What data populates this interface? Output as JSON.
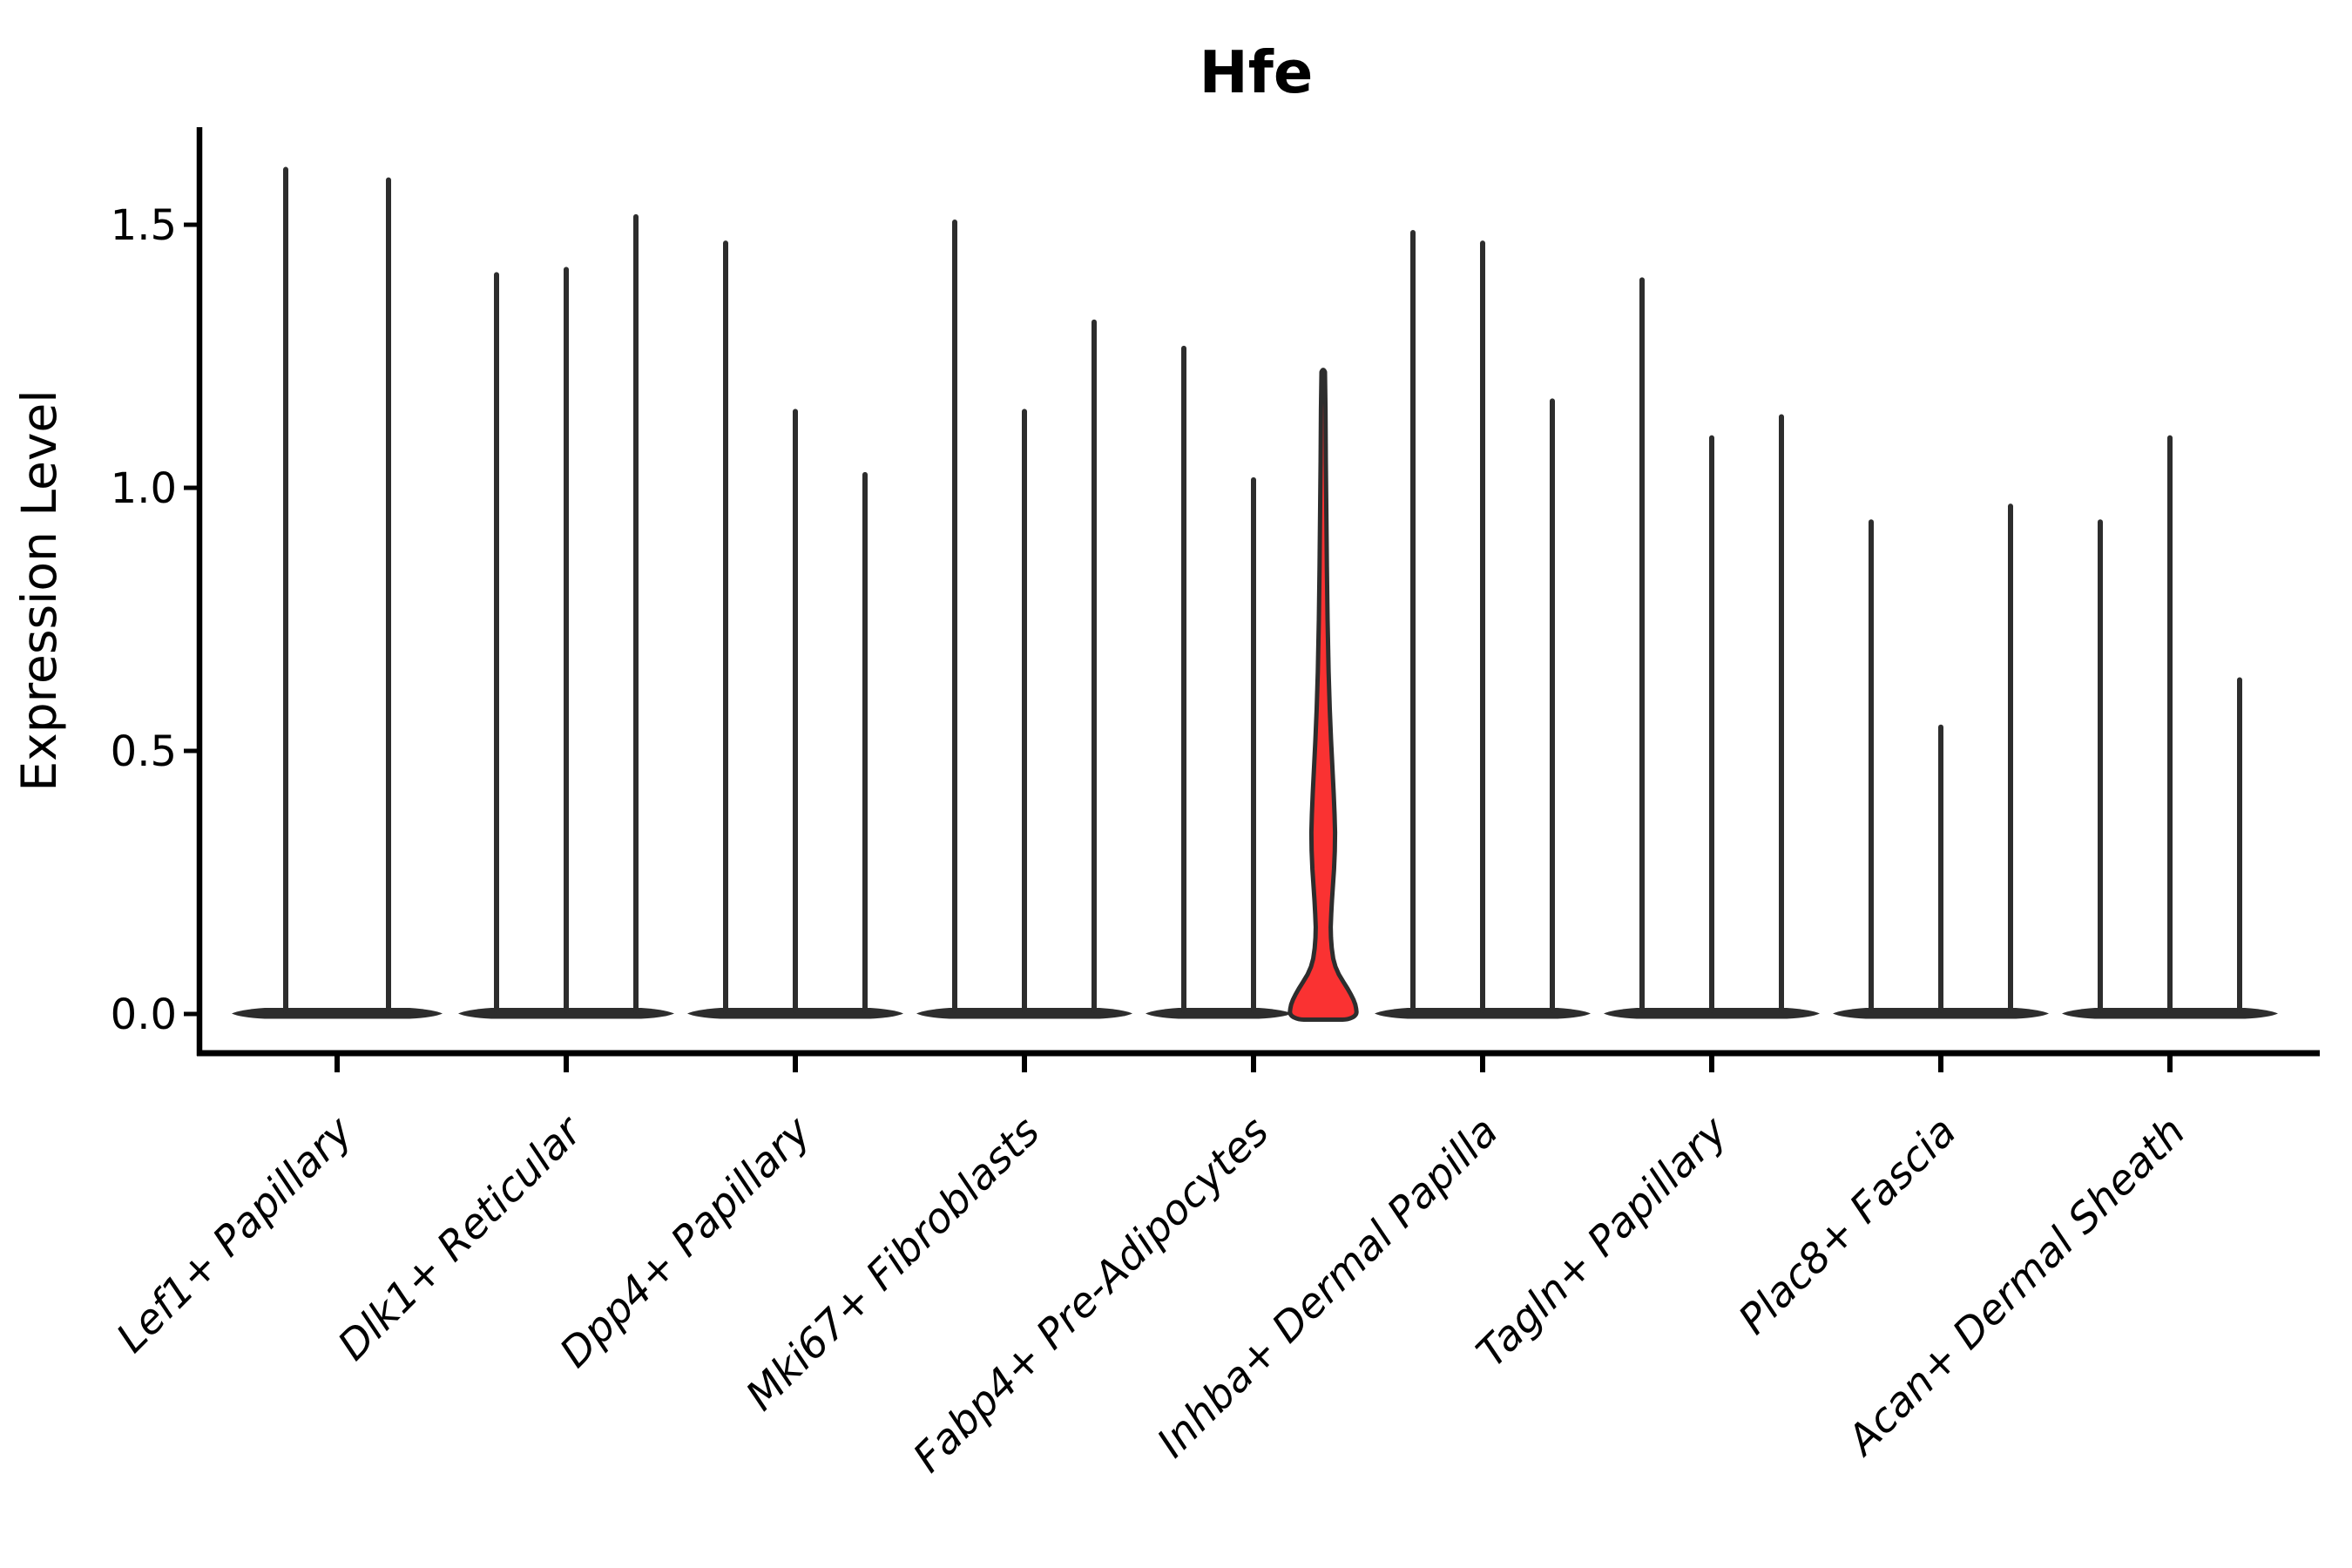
{
  "chart_data": {
    "type": "violin",
    "title": "Hfe",
    "ylabel": "Expression Level",
    "xlabel": "",
    "ylim": [
      -0.07,
      1.69
    ],
    "yticks": [
      0.0,
      0.5,
      1.0,
      1.5
    ],
    "ytick_labels": [
      "0.0",
      "0.5",
      "1.0",
      "1.5"
    ],
    "grid": "off",
    "legend": "none",
    "categories": [
      "Lef1+ Papillary",
      "Dlk1+ Reticular",
      "Dpp4+ Papillary",
      "Mki67+ Fibroblasts",
      "Fabp4+ Pre-Adipocytes",
      "Inhba+ Dermal Papilla",
      "Tagln+ Papillary",
      "Plac8+ Fascia",
      "Acan+ Dermal Sheath"
    ],
    "groups": [
      {
        "category": "Lef1+ Papillary",
        "violins": [
          {
            "max": 1.61,
            "highlighted": false
          },
          {
            "max": 1.59,
            "highlighted": false
          }
        ]
      },
      {
        "category": "Dlk1+ Reticular",
        "violins": [
          {
            "max": 1.41,
            "highlighted": false
          },
          {
            "max": 1.42,
            "highlighted": false
          },
          {
            "max": 1.52,
            "highlighted": false
          }
        ]
      },
      {
        "category": "Dpp4+ Papillary",
        "violins": [
          {
            "max": 1.47,
            "highlighted": false
          },
          {
            "max": 1.15,
            "highlighted": false
          },
          {
            "max": 1.03,
            "highlighted": false
          }
        ]
      },
      {
        "category": "Mki67+ Fibroblasts",
        "violins": [
          {
            "max": 1.51,
            "highlighted": false
          },
          {
            "max": 1.15,
            "highlighted": false
          },
          {
            "max": 1.32,
            "highlighted": false
          }
        ]
      },
      {
        "category": "Fabp4+ Pre-Adipocytes",
        "violins": [
          {
            "max": 1.27,
            "highlighted": false
          },
          {
            "max": 1.02,
            "highlighted": false
          },
          {
            "max": 1.22,
            "highlighted": true
          }
        ]
      },
      {
        "category": "Inhba+ Dermal Papilla",
        "violins": [
          {
            "max": 1.49,
            "highlighted": false
          },
          {
            "max": 1.47,
            "highlighted": false
          },
          {
            "max": 1.17,
            "highlighted": false
          }
        ]
      },
      {
        "category": "Tagln+ Papillary",
        "violins": [
          {
            "max": 1.4,
            "highlighted": false
          },
          {
            "max": 1.1,
            "highlighted": false
          },
          {
            "max": 1.14,
            "highlighted": false
          }
        ]
      },
      {
        "category": "Plac8+ Fascia",
        "violins": [
          {
            "max": 0.94,
            "highlighted": false
          },
          {
            "max": 0.55,
            "highlighted": false
          },
          {
            "max": 0.97,
            "highlighted": false
          }
        ]
      },
      {
        "category": "Acan+ Dermal Sheath",
        "violins": [
          {
            "max": 0.94,
            "highlighted": false
          },
          {
            "max": 1.1,
            "highlighted": false
          },
          {
            "max": 0.64,
            "highlighted": false
          }
        ]
      }
    ],
    "highlight": {
      "category": "Fabp4+ Pre-Adipocytes",
      "violin_index": 2,
      "max": 1.22,
      "fill_color": "#fa3232",
      "profile_value_halfwidth": [
        [
          1.22,
          2.0
        ],
        [
          1.15,
          2.6
        ],
        [
          1.05,
          3.0
        ],
        [
          0.95,
          3.6
        ],
        [
          0.85,
          4.2
        ],
        [
          0.75,
          5.0
        ],
        [
          0.65,
          6.2
        ],
        [
          0.58,
          7.5
        ],
        [
          0.52,
          9.0
        ],
        [
          0.47,
          10.5
        ],
        [
          0.42,
          12.0
        ],
        [
          0.38,
          13.0
        ],
        [
          0.345,
          13.6
        ],
        [
          0.31,
          13.3
        ],
        [
          0.275,
          12.4
        ],
        [
          0.245,
          11.2
        ],
        [
          0.215,
          10.0
        ],
        [
          0.19,
          9.2
        ],
        [
          0.165,
          8.6
        ],
        [
          0.145,
          8.9
        ],
        [
          0.125,
          9.8
        ],
        [
          0.105,
          11.5
        ],
        [
          0.09,
          14.0
        ],
        [
          0.075,
          18.0
        ],
        [
          0.06,
          23.5
        ],
        [
          0.048,
          28.0
        ],
        [
          0.037,
          31.8
        ],
        [
          0.027,
          34.8
        ],
        [
          0.018,
          36.8
        ],
        [
          0.01,
          37.8
        ],
        [
          0.004,
          38.2
        ]
      ]
    },
    "colors": {
      "outline": "#2d2d2d",
      "highlight_fill": "#fa3232",
      "axis": "#000000",
      "background": "#ffffff"
    }
  }
}
